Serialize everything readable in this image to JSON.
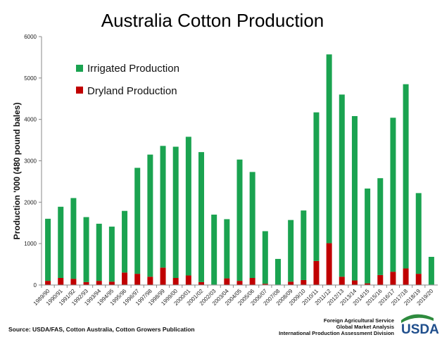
{
  "chart_data": {
    "type": "bar",
    "stacked": true,
    "title": "Australia Cotton Production",
    "ylabel": "Production '000 (480 pound bales)",
    "ylim": [
      0,
      6000
    ],
    "yticks": [
      "0",
      "1000",
      "2000",
      "3000",
      "4000",
      "5000",
      "6000"
    ],
    "categories": [
      "1989/90",
      "1990/91",
      "1991/92",
      "1992/93",
      "1993/94",
      "1994/95",
      "1995/96",
      "1996/97",
      "1997/98",
      "1998/99",
      "1999/00",
      "2000/01",
      "2001/02",
      "2002/03",
      "2003/04",
      "2004/05",
      "2005/06",
      "2006/07",
      "2007/08",
      "2008/09",
      "2009/10",
      "2010/11",
      "2011/12",
      "2012/13",
      "2013/14",
      "2014/15",
      "2015/16",
      "2016/17",
      "2017/18",
      "2018/19",
      "2019/20"
    ],
    "series": [
      {
        "name": "Dryland  Production",
        "color": "#c00000",
        "values": [
          100,
          170,
          150,
          70,
          100,
          80,
          300,
          270,
          200,
          420,
          170,
          230,
          70,
          10,
          160,
          100,
          170,
          30,
          10,
          80,
          120,
          580,
          1010,
          200,
          110,
          40,
          240,
          320,
          400,
          270,
          10
        ]
      },
      {
        "name": "Irrigated Production",
        "color": "#1aa350",
        "values": [
          1500,
          1720,
          1950,
          1570,
          1380,
          1330,
          1490,
          2560,
          2950,
          2940,
          3170,
          3350,
          3140,
          1690,
          1430,
          2930,
          2560,
          1270,
          620,
          1490,
          1680,
          3590,
          4560,
          4400,
          3970,
          2290,
          2340,
          3720,
          4450,
          1950,
          670
        ]
      }
    ],
    "legend": "top-left",
    "grid": false
  },
  "source": "Source: USDA/FAS, Cotton Australia, Cotton Growers Publication",
  "credits": [
    "Foreign Agricultural Service",
    "Global Market Analysis",
    "International Production Assessment Division"
  ],
  "logo": {
    "text": "USDA",
    "color": "#1f4e8c"
  }
}
